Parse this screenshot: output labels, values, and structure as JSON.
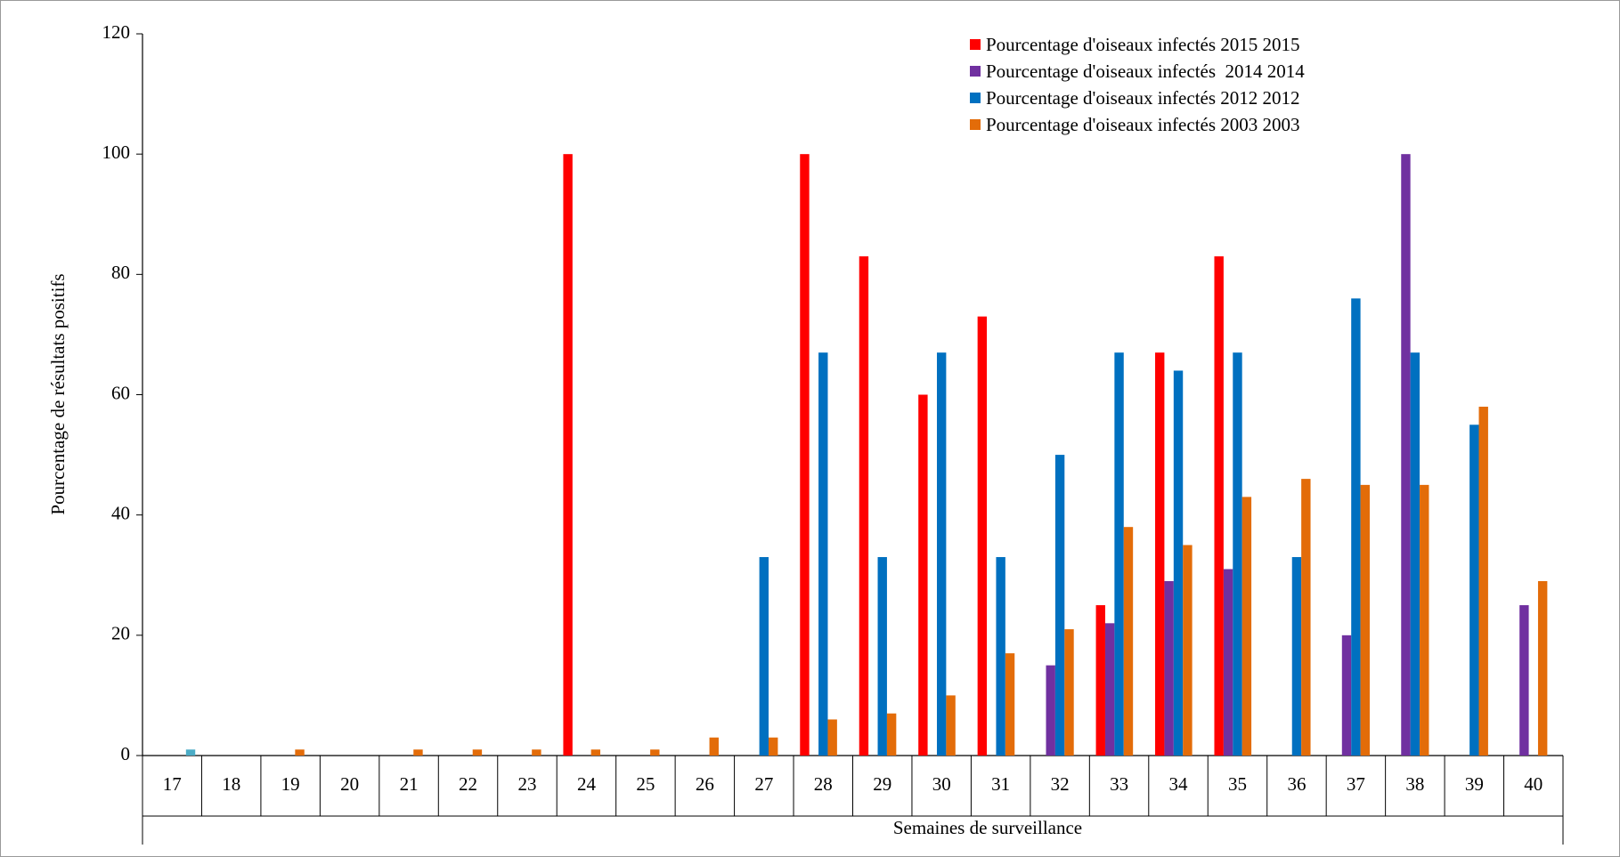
{
  "chart_data": {
    "type": "bar",
    "categories": [
      "17",
      "18",
      "19",
      "20",
      "21",
      "22",
      "23",
      "24",
      "25",
      "26",
      "27",
      "28",
      "29",
      "30",
      "31",
      "32",
      "33",
      "34",
      "35",
      "36",
      "37",
      "38",
      "39",
      "40"
    ],
    "series": [
      {
        "name": "Pourcentage d'oiseaux infectés 2015 2015",
        "color": "#ff0000",
        "values": [
          null,
          null,
          null,
          null,
          null,
          null,
          null,
          100,
          null,
          null,
          null,
          100,
          83,
          60,
          73,
          null,
          25,
          67,
          83,
          null,
          null,
          null,
          null,
          null
        ]
      },
      {
        "name": "Pourcentage d'oiseaux infectés  2014 2014",
        "color": "#7030a0",
        "values": [
          null,
          null,
          null,
          null,
          null,
          null,
          null,
          null,
          null,
          null,
          null,
          null,
          null,
          null,
          null,
          15,
          22,
          29,
          31,
          null,
          20,
          100,
          null,
          25
        ]
      },
      {
        "name": "Pourcentage d'oiseaux infectés 2012 2012",
        "color": "#0070c0",
        "values": [
          null,
          null,
          null,
          null,
          null,
          null,
          null,
          null,
          null,
          null,
          33,
          67,
          33,
          67,
          33,
          50,
          67,
          64,
          67,
          33,
          76,
          67,
          55,
          null
        ]
      },
      {
        "name": "Pourcentage d'oiseaux infectés 2003 2003",
        "color": "#e36c09",
        "values": [
          null,
          null,
          1,
          null,
          1,
          1,
          1,
          1,
          1,
          3,
          3,
          6,
          7,
          10,
          17,
          21,
          38,
          35,
          43,
          46,
          45,
          45,
          58,
          29
        ]
      },
      {
        "color": "#4bacc6",
        "values": [
          1,
          null,
          null,
          null,
          null,
          null,
          null,
          null,
          null,
          null,
          null,
          null,
          null,
          null,
          null,
          null,
          null,
          null,
          null,
          null,
          null,
          null,
          null,
          null
        ]
      }
    ],
    "xlabel": "Semaines de surveillance",
    "ylabel": "Pourcentage de résultats positifs",
    "ylim": [
      0,
      120
    ],
    "yticks": [
      0,
      20,
      40,
      60,
      80,
      100,
      120
    ],
    "grid": false,
    "legend": "top-right"
  }
}
